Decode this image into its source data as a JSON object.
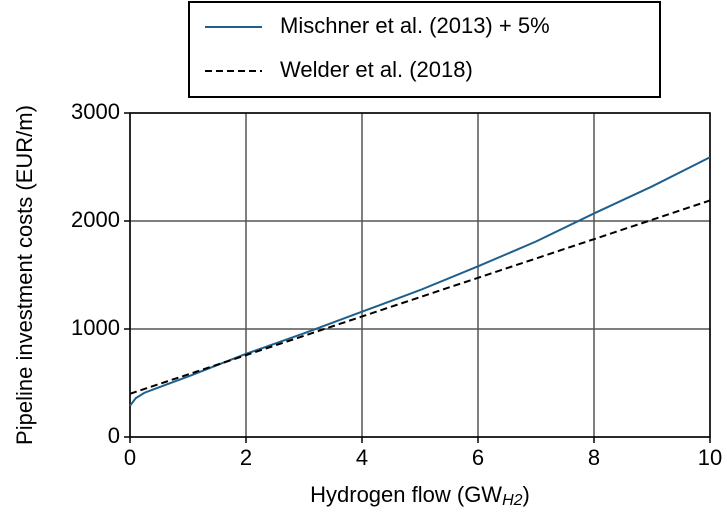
{
  "chart_data": {
    "type": "line",
    "xlabel": {
      "text": "Hydrogen flow (GW",
      "subscript": "H2",
      "close": ")"
    },
    "ylabel": "Pipeline investment costs (EUR/m)",
    "x": [
      0,
      0.1,
      0.25,
      0.5,
      1,
      2,
      3,
      4,
      5,
      6,
      7,
      8,
      9,
      10
    ],
    "series": [
      {
        "name": "Mischner et al. (2013) + 5%",
        "color": "#1f5f8b",
        "linestyle": "solid",
        "values": [
          290,
          360,
          410,
          460,
          560,
          770,
          960,
          1160,
          1360,
          1580,
          1810,
          2070,
          2320,
          2590
        ]
      },
      {
        "name": "Welder et al. (2018)",
        "color": "#000000",
        "linestyle": "dashed",
        "values": [
          400,
          418,
          445,
          490,
          579,
          758,
          937,
          1116,
          1295,
          1474,
          1653,
          1832,
          2011,
          2190
        ]
      }
    ],
    "xlim": [
      0,
      10
    ],
    "xticks": [
      0,
      2,
      4,
      6,
      8,
      10
    ],
    "ylim": [
      0,
      3000
    ],
    "yticks": [
      0,
      1000,
      2000,
      3000
    ],
    "grid": true,
    "legend": "top"
  }
}
